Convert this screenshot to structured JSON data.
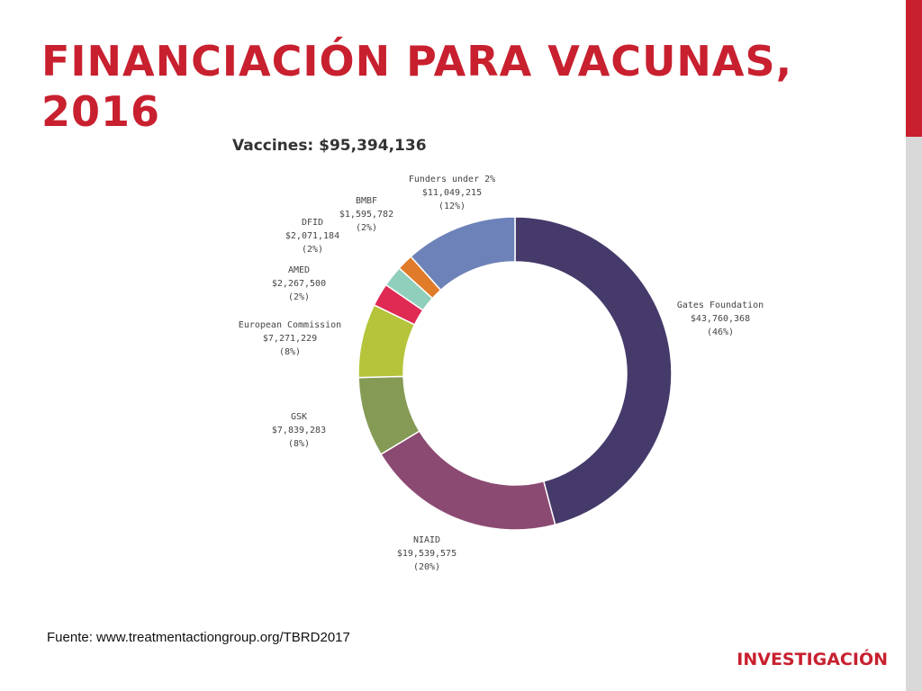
{
  "slide": {
    "title": "FINANCIACIÓN PARA VACUNAS, 2016",
    "source": "Fuente: www.treatmentactiongroup.org/TBRD2017",
    "section": "INVESTIGACIÓN",
    "accent_color": "#c8202f"
  },
  "chart_data": {
    "type": "pie",
    "donut": true,
    "title": "Vaccines: $95,394,136",
    "slices": [
      {
        "name": "Gates Foundation",
        "amount": "$43,760,368",
        "percent_label": "(46%)",
        "value": 43760368,
        "color": "#463a6b"
      },
      {
        "name": "NIAID",
        "amount": "$19,539,575",
        "percent_label": "(20%)",
        "value": 19539575,
        "color": "#8b4a72"
      },
      {
        "name": "GSK",
        "amount": "$7,839,283",
        "percent_label": "(8%)",
        "value": 7839283,
        "color": "#859b55"
      },
      {
        "name": "European Commission",
        "amount": "$7,271,229",
        "percent_label": "(8%)",
        "value": 7271229,
        "color": "#b5c43a"
      },
      {
        "name": "AMED",
        "amount": "$2,267,500",
        "percent_label": "(2%)",
        "value": 2267500,
        "color": "#df2a54"
      },
      {
        "name": "DFID",
        "amount": "$2,071,184",
        "percent_label": "(2%)",
        "value": 2071184,
        "color": "#8fcfbb"
      },
      {
        "name": "BMBF",
        "amount": "$1,595,782",
        "percent_label": "(2%)",
        "value": 1595782,
        "color": "#e07b2a"
      },
      {
        "name": "Funders under 2%",
        "amount": "$11,049,215",
        "percent_label": "(12%)",
        "value": 11049215,
        "color": "#6d82b8"
      }
    ]
  }
}
